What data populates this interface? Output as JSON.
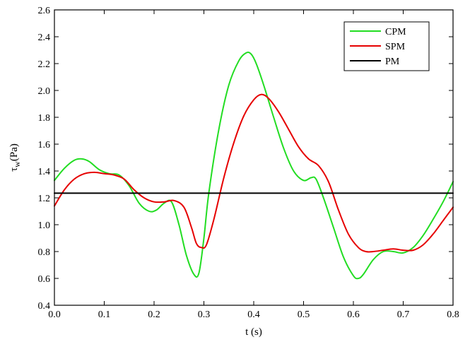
{
  "chart_data": {
    "type": "line",
    "xlabel": "t (s)",
    "ylabel": "τ",
    "ylabel_sub": "w",
    "ylabel_unit": "(Pa)",
    "xlim": [
      0.0,
      0.8
    ],
    "ylim": [
      0.4,
      2.6
    ],
    "xticks": [
      0.0,
      0.1,
      0.2,
      0.3,
      0.4,
      0.5,
      0.6,
      0.7,
      0.8
    ],
    "xtick_labels": [
      "0.0",
      "0.1",
      "0.2",
      "0.3",
      "0.4",
      "0.5",
      "0.6",
      "0.7",
      "0.8"
    ],
    "yticks": [
      0.4,
      0.6,
      0.8,
      1.0,
      1.2,
      1.4,
      1.6,
      1.8,
      2.0,
      2.2,
      2.4,
      2.6
    ],
    "ytick_labels": [
      "0.4",
      "0.6",
      "0.8",
      "1.0",
      "1.2",
      "1.4",
      "1.6",
      "1.8",
      "2.0",
      "2.2",
      "2.4",
      "2.6"
    ],
    "grid": false,
    "legend_position": "top-right",
    "series": [
      {
        "name": "CPM",
        "color": "#22dd22",
        "x": [
          0.0,
          0.02,
          0.04,
          0.055,
          0.07,
          0.09,
          0.11,
          0.13,
          0.15,
          0.17,
          0.19,
          0.205,
          0.22,
          0.235,
          0.25,
          0.265,
          0.28,
          0.29,
          0.3,
          0.31,
          0.33,
          0.35,
          0.37,
          0.385,
          0.395,
          0.405,
          0.42,
          0.44,
          0.46,
          0.48,
          0.5,
          0.515,
          0.525,
          0.54,
          0.56,
          0.58,
          0.6,
          0.61,
          0.62,
          0.64,
          0.66,
          0.68,
          0.7,
          0.72,
          0.74,
          0.76,
          0.78,
          0.8
        ],
        "y": [
          1.33,
          1.42,
          1.48,
          1.49,
          1.47,
          1.41,
          1.38,
          1.37,
          1.29,
          1.16,
          1.1,
          1.11,
          1.16,
          1.17,
          1.0,
          0.77,
          0.63,
          0.64,
          0.9,
          1.24,
          1.71,
          2.04,
          2.22,
          2.28,
          2.27,
          2.2,
          2.04,
          1.8,
          1.57,
          1.4,
          1.33,
          1.35,
          1.34,
          1.2,
          0.98,
          0.76,
          0.62,
          0.6,
          0.63,
          0.74,
          0.8,
          0.8,
          0.79,
          0.83,
          0.92,
          1.04,
          1.17,
          1.32
        ]
      },
      {
        "name": "SPM",
        "color": "#e60000",
        "x": [
          0.0,
          0.02,
          0.04,
          0.06,
          0.08,
          0.1,
          0.12,
          0.14,
          0.16,
          0.18,
          0.2,
          0.22,
          0.24,
          0.26,
          0.275,
          0.285,
          0.295,
          0.305,
          0.32,
          0.34,
          0.36,
          0.38,
          0.4,
          0.415,
          0.43,
          0.45,
          0.47,
          0.49,
          0.51,
          0.53,
          0.55,
          0.57,
          0.59,
          0.61,
          0.625,
          0.64,
          0.66,
          0.68,
          0.7,
          0.72,
          0.74,
          0.76,
          0.78,
          0.8
        ],
        "y": [
          1.14,
          1.26,
          1.34,
          1.38,
          1.39,
          1.38,
          1.37,
          1.34,
          1.26,
          1.2,
          1.17,
          1.17,
          1.18,
          1.13,
          0.98,
          0.86,
          0.83,
          0.85,
          1.04,
          1.35,
          1.61,
          1.81,
          1.93,
          1.97,
          1.94,
          1.84,
          1.71,
          1.58,
          1.49,
          1.44,
          1.32,
          1.11,
          0.93,
          0.83,
          0.8,
          0.8,
          0.81,
          0.82,
          0.81,
          0.81,
          0.85,
          0.93,
          1.03,
          1.13
        ]
      },
      {
        "name": "PM",
        "color": "#000000",
        "x": [
          0.0,
          0.8
        ],
        "y": [
          1.235,
          1.235
        ]
      }
    ]
  }
}
